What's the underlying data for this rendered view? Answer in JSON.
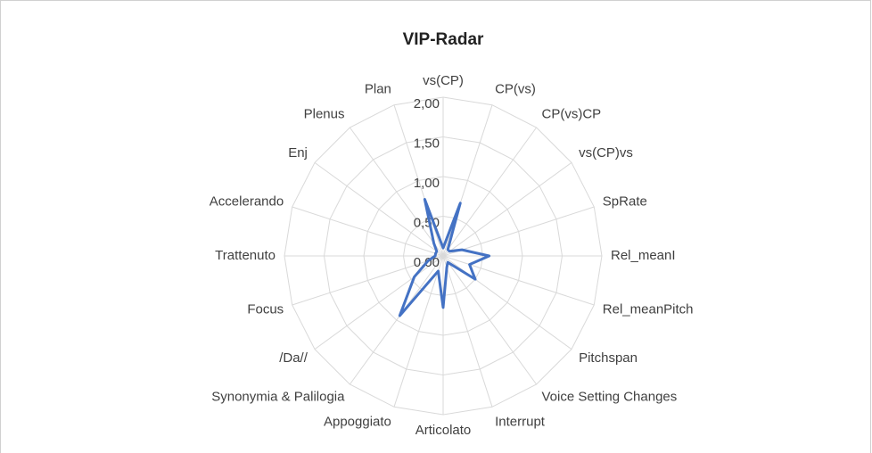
{
  "chart_data": {
    "type": "radar",
    "title": "VIP-Radar",
    "categories": [
      "vs(CP)",
      "CP(vs)",
      "CP(vs)CP",
      "vs(CP)vs",
      "SpRate",
      "Rel_meanI",
      "Rel_meanPitch",
      "Pitchspan",
      "Voice Setting Changes",
      "Interrupt",
      "Articolato",
      "Appoggiato",
      "Synonymia & Palilogia",
      "/Da//",
      "Focus",
      "Trattenuto",
      "Accelerando",
      "Enj",
      "Plenus",
      "Plan"
    ],
    "series": [
      {
        "name": "VIP",
        "color": "#4472c4",
        "values": [
          0.1,
          0.7,
          0.1,
          0.1,
          0.25,
          0.58,
          0.35,
          0.5,
          0.1,
          0.15,
          0.65,
          0.2,
          0.93,
          0.45,
          0.2,
          0.1,
          0.1,
          0.1,
          0.2,
          0.75
        ]
      }
    ],
    "ylim": [
      0,
      2
    ],
    "yticks": [
      {
        "value": 0,
        "label": "0,00"
      },
      {
        "value": 0.5,
        "label": "0,50"
      },
      {
        "value": 1,
        "label": "1,00"
      },
      {
        "value": 1.5,
        "label": "1,50"
      },
      {
        "value": 2,
        "label": "2,00"
      }
    ],
    "grid": true
  }
}
